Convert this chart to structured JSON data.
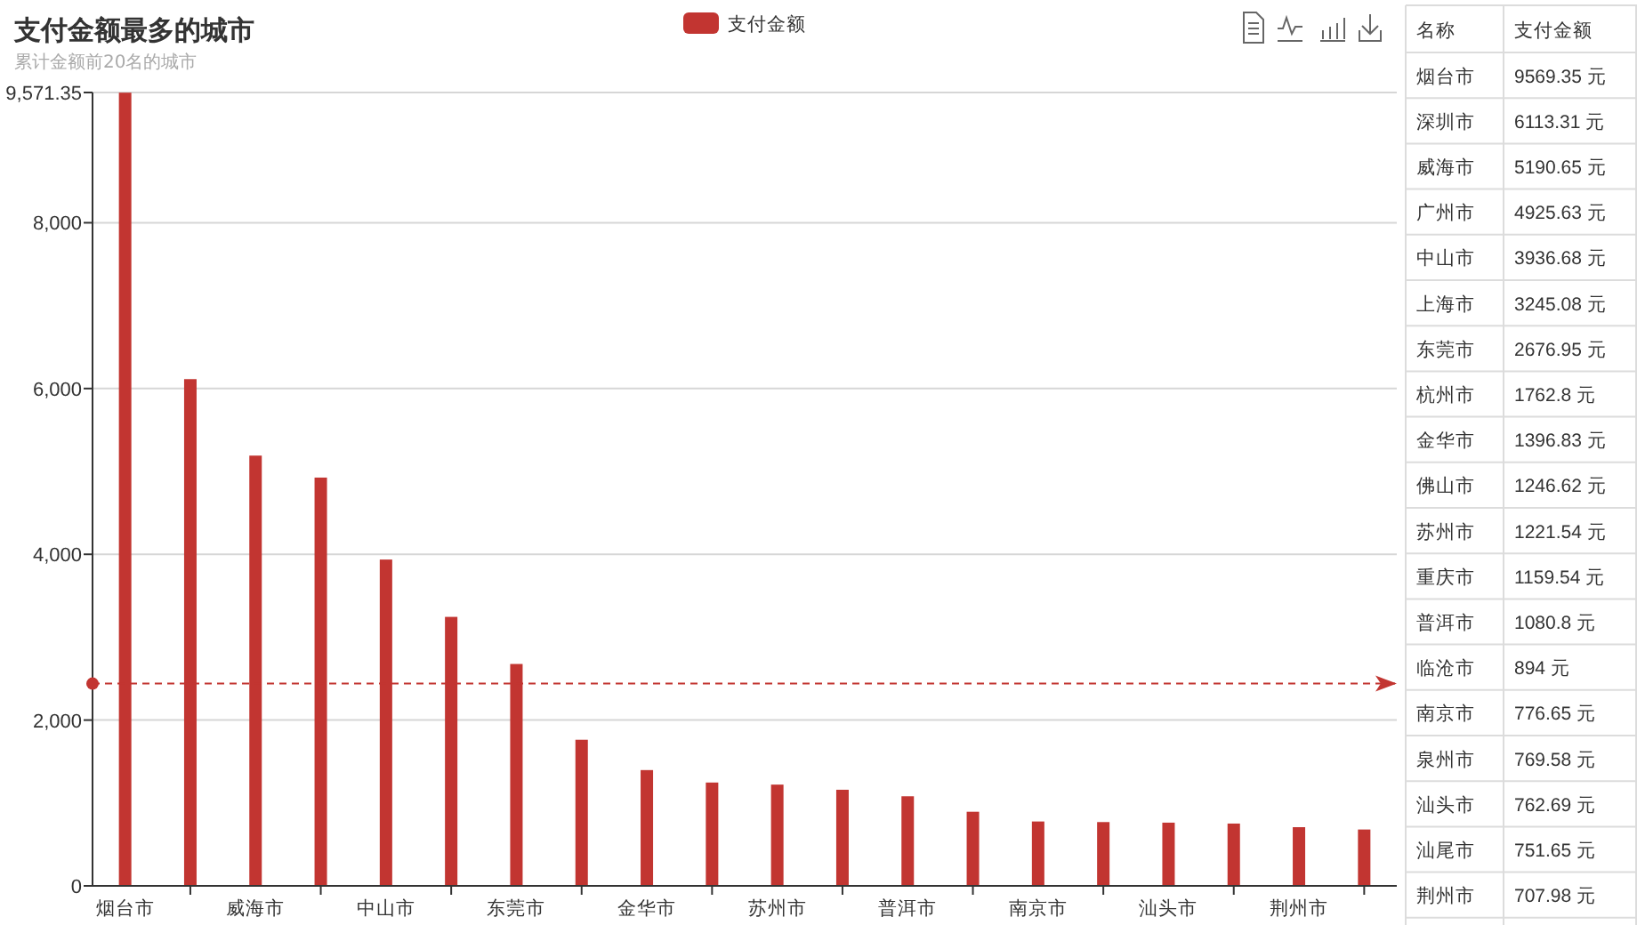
{
  "chart_data": [
    {
      "type": "bar",
      "title": "支付金额最多的城市",
      "subtitle": "累计金额前20名的城市",
      "categories": [
        "烟台市",
        null,
        "威海市",
        null,
        "中山市",
        null,
        "东莞市",
        null,
        "金华市",
        null,
        "苏州市",
        null,
        "普洱市",
        null,
        "南京市",
        null,
        "汕头市",
        null,
        "荆州市",
        null
      ],
      "series": [
        {
          "name": "支付金额",
          "color": "#c23531",
          "values": [
            9569.35,
            6113.31,
            5190.65,
            4925.63,
            3936.68,
            3245.08,
            2676.95,
            1762.8,
            1396.83,
            1246.62,
            1221.54,
            1159.54,
            1080.8,
            894,
            776.65,
            769.58,
            762.69,
            751.65,
            707.98,
            680
          ]
        }
      ],
      "ylim": [
        0,
        9571.35
      ],
      "yticks": [
        0,
        {
          "value": 2000,
          "label": "2,000"
        },
        {
          "value": 4000,
          "label": "4,000"
        },
        {
          "value": 6000,
          "label": "6,000"
        },
        {
          "value": 8000,
          "label": "8,000"
        },
        {
          "value": 9571.35,
          "label": "9,571.35"
        }
      ],
      "grid": "y",
      "legend": "top",
      "ref_lines": [
        {
          "axis": "y",
          "value": 2440,
          "color": "#c23531",
          "line_style": "dashed"
        }
      ]
    },
    {
      "type": "other",
      "annotations": [
        "名称",
        "支付金额",
        "烟台市",
        "9569.35 元",
        "深圳市",
        "6113.31 元",
        "威海市",
        "5190.65 元",
        "广州市",
        "4925.63 元",
        "中山市",
        "3936.68 元",
        "上海市",
        "3245.08 元",
        "东莞市",
        "2676.95 元",
        "杭州市",
        "1762.8 元",
        "金华市",
        "1396.83 元",
        "佛山市",
        "1246.62 元",
        "苏州市",
        "1221.54 元",
        "重庆市",
        "1159.54 元",
        "普洱市",
        "1080.8 元",
        "临沧市",
        "894 元",
        "南京市",
        "776.65 元",
        "泉州市",
        "769.58 元",
        "汕头市",
        "762.69 元",
        "汕尾市",
        "751.65 元",
        "荆州市",
        "707.98 元"
      ]
    }
  ]
}
